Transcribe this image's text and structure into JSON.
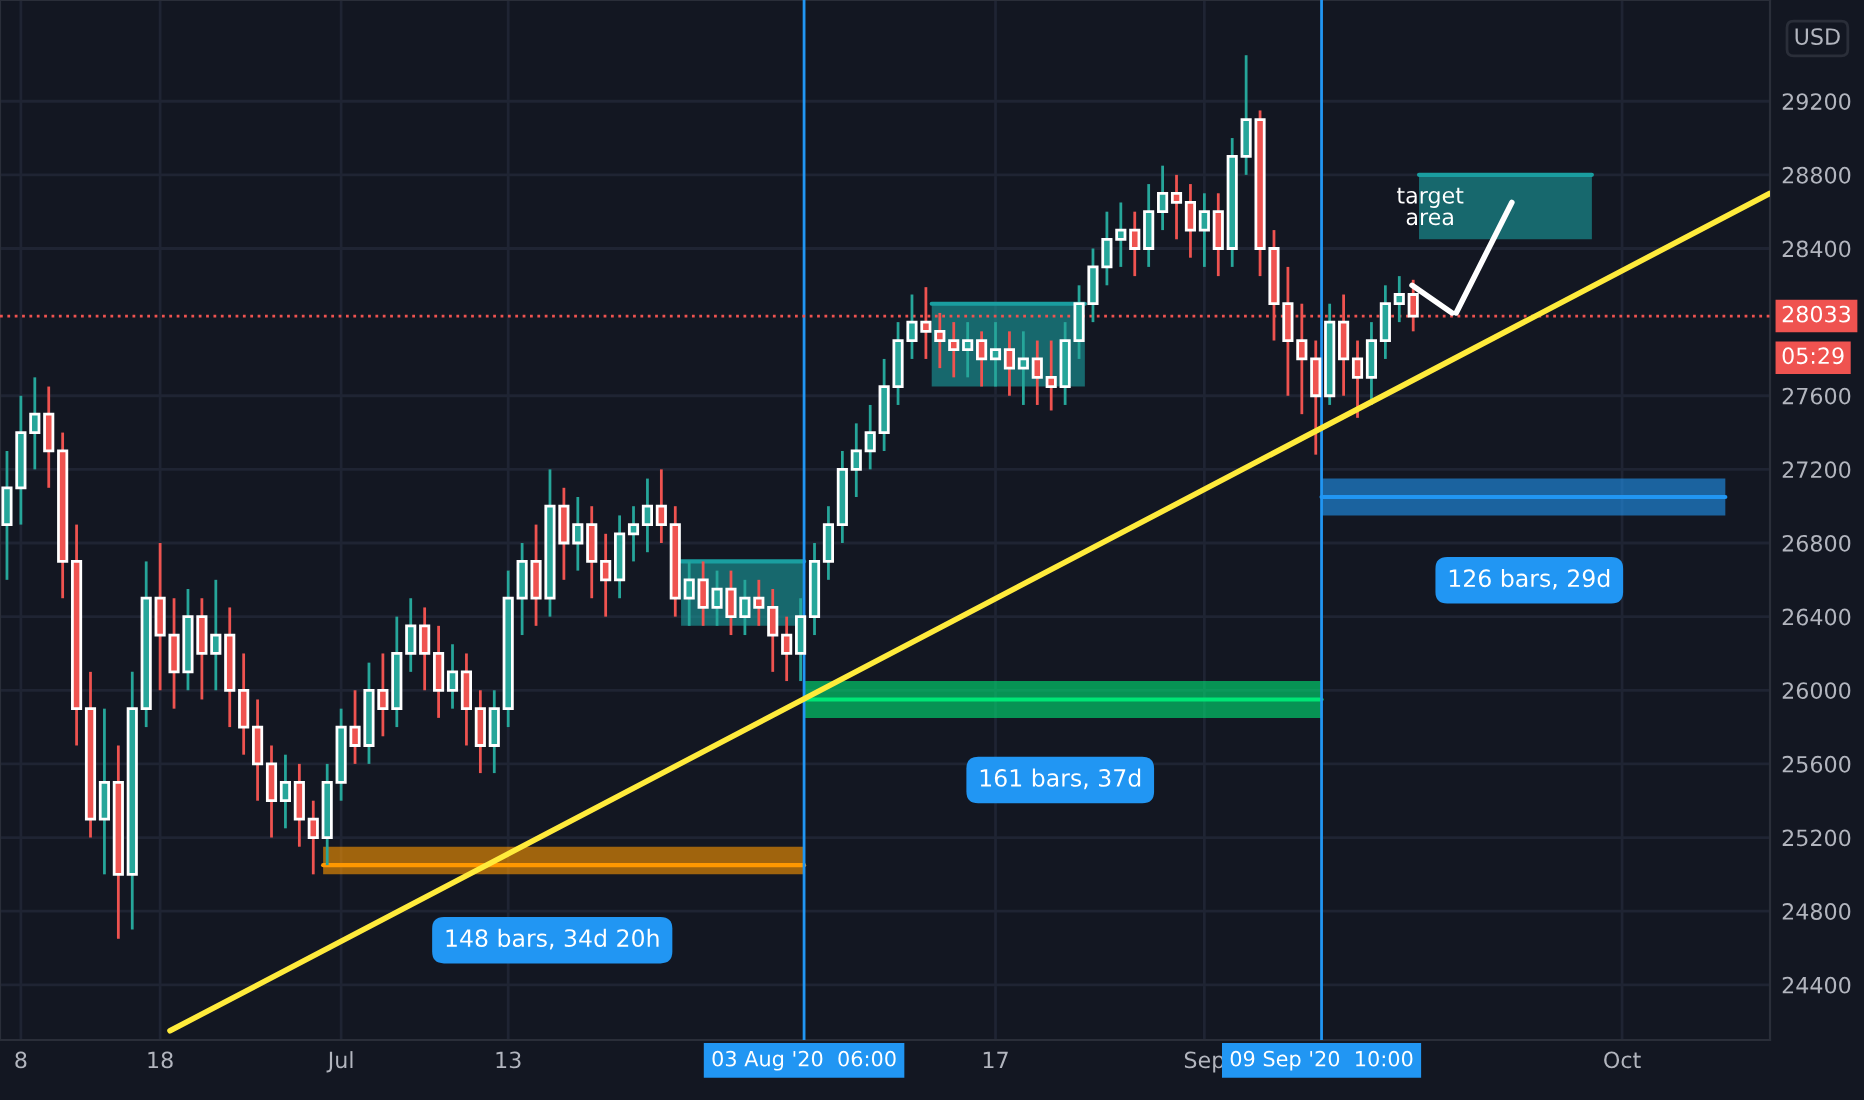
{
  "chart_data": {
    "type": "candlestick",
    "x": [
      "2020-06-07",
      "2020-06-08",
      "2020-06-09",
      "2020-06-10",
      "2020-06-11",
      "2020-06-12",
      "2020-06-13",
      "2020-06-14",
      "2020-06-15",
      "2020-06-16",
      "2020-06-17",
      "2020-06-18",
      "2020-06-19",
      "2020-06-20",
      "2020-06-21",
      "2020-06-22",
      "2020-06-23",
      "2020-06-24",
      "2020-06-25",
      "2020-06-26",
      "2020-06-27",
      "2020-06-28",
      "2020-06-29",
      "2020-06-30",
      "2020-07-01",
      "2020-07-02",
      "2020-07-03",
      "2020-07-04",
      "2020-07-05",
      "2020-07-06",
      "2020-07-07",
      "2020-07-08",
      "2020-07-09",
      "2020-07-10",
      "2020-07-11",
      "2020-07-12",
      "2020-07-13",
      "2020-07-14",
      "2020-07-15",
      "2020-07-16",
      "2020-07-17",
      "2020-07-18",
      "2020-07-19",
      "2020-07-20",
      "2020-07-21",
      "2020-07-22",
      "2020-07-23",
      "2020-07-24",
      "2020-07-25",
      "2020-07-26",
      "2020-07-27",
      "2020-07-28",
      "2020-07-29",
      "2020-07-30",
      "2020-07-31",
      "2020-08-01",
      "2020-08-02",
      "2020-08-03",
      "2020-08-04",
      "2020-08-05",
      "2020-08-06",
      "2020-08-07",
      "2020-08-08",
      "2020-08-09",
      "2020-08-10",
      "2020-08-11",
      "2020-08-12",
      "2020-08-13",
      "2020-08-14",
      "2020-08-15",
      "2020-08-16",
      "2020-08-17",
      "2020-08-18",
      "2020-08-19",
      "2020-08-20",
      "2020-08-21",
      "2020-08-22",
      "2020-08-23",
      "2020-08-24",
      "2020-08-25",
      "2020-08-26",
      "2020-08-27",
      "2020-08-28",
      "2020-08-29",
      "2020-08-30",
      "2020-08-31",
      "2020-09-01",
      "2020-09-02",
      "2020-09-03",
      "2020-09-04",
      "2020-09-05",
      "2020-09-06",
      "2020-09-07",
      "2020-09-08",
      "2020-09-09",
      "2020-09-10",
      "2020-09-11",
      "2020-09-12",
      "2020-09-13",
      "2020-09-14",
      "2020-09-15",
      "2020-09-16"
    ],
    "ohlc": [
      [
        26900,
        27300,
        26600,
        27100
      ],
      [
        27100,
        27600,
        26900,
        27400
      ],
      [
        27400,
        27700,
        27200,
        27500
      ],
      [
        27500,
        27650,
        27100,
        27300
      ],
      [
        27300,
        27400,
        26500,
        26700
      ],
      [
        26700,
        26900,
        25700,
        25900
      ],
      [
        25900,
        26100,
        25200,
        25300
      ],
      [
        25300,
        25900,
        25000,
        25500
      ],
      [
        25500,
        25700,
        24650,
        25000
      ],
      [
        25000,
        26100,
        24700,
        25900
      ],
      [
        25900,
        26700,
        25800,
        26500
      ],
      [
        26500,
        26800,
        26000,
        26300
      ],
      [
        26300,
        26500,
        25900,
        26100
      ],
      [
        26100,
        26550,
        26000,
        26400
      ],
      [
        26400,
        26500,
        25950,
        26200
      ],
      [
        26200,
        26600,
        26000,
        26300
      ],
      [
        26300,
        26450,
        25800,
        26000
      ],
      [
        26000,
        26200,
        25650,
        25800
      ],
      [
        25800,
        25950,
        25400,
        25600
      ],
      [
        25600,
        25700,
        25200,
        25400
      ],
      [
        25400,
        25650,
        25250,
        25500
      ],
      [
        25500,
        25600,
        25150,
        25300
      ],
      [
        25300,
        25400,
        25000,
        25200
      ],
      [
        25200,
        25600,
        25050,
        25500
      ],
      [
        25500,
        25900,
        25400,
        25800
      ],
      [
        25800,
        26000,
        25600,
        25700
      ],
      [
        25700,
        26150,
        25600,
        26000
      ],
      [
        26000,
        26200,
        25750,
        25900
      ],
      [
        25900,
        26400,
        25800,
        26200
      ],
      [
        26200,
        26500,
        26100,
        26350
      ],
      [
        26350,
        26450,
        26000,
        26200
      ],
      [
        26200,
        26350,
        25850,
        26000
      ],
      [
        26000,
        26250,
        25900,
        26100
      ],
      [
        26100,
        26200,
        25700,
        25900
      ],
      [
        25900,
        26000,
        25550,
        25700
      ],
      [
        25700,
        26000,
        25550,
        25900
      ],
      [
        25900,
        26650,
        25800,
        26500
      ],
      [
        26500,
        26800,
        26300,
        26700
      ],
      [
        26700,
        26900,
        26350,
        26500
      ],
      [
        26500,
        27200,
        26400,
        27000
      ],
      [
        27000,
        27100,
        26600,
        26800
      ],
      [
        26800,
        27050,
        26650,
        26900
      ],
      [
        26900,
        27000,
        26500,
        26700
      ],
      [
        26700,
        26850,
        26400,
        26600
      ],
      [
        26600,
        26950,
        26500,
        26850
      ],
      [
        26850,
        27000,
        26700,
        26900
      ],
      [
        26900,
        27150,
        26750,
        27000
      ],
      [
        27000,
        27200,
        26800,
        26900
      ],
      [
        26900,
        27000,
        26400,
        26500
      ],
      [
        26500,
        26700,
        26350,
        26600
      ],
      [
        26600,
        26700,
        26350,
        26450
      ],
      [
        26450,
        26650,
        26350,
        26550
      ],
      [
        26550,
        26650,
        26300,
        26400
      ],
      [
        26400,
        26600,
        26300,
        26500
      ],
      [
        26500,
        26600,
        26350,
        26450
      ],
      [
        26450,
        26550,
        26100,
        26300
      ],
      [
        26300,
        26400,
        26050,
        26200
      ],
      [
        26200,
        26500,
        26050,
        26400
      ],
      [
        26400,
        26800,
        26300,
        26700
      ],
      [
        26700,
        27000,
        26600,
        26900
      ],
      [
        26900,
        27300,
        26800,
        27200
      ],
      [
        27200,
        27450,
        27050,
        27300
      ],
      [
        27300,
        27550,
        27200,
        27400
      ],
      [
        27400,
        27800,
        27300,
        27650
      ],
      [
        27650,
        28000,
        27550,
        27900
      ],
      [
        27900,
        28150,
        27800,
        28000
      ],
      [
        28000,
        28190,
        27800,
        27950
      ],
      [
        27950,
        28050,
        27750,
        27900
      ],
      [
        27900,
        28000,
        27700,
        27850
      ],
      [
        27850,
        28000,
        27700,
        27900
      ],
      [
        27900,
        27950,
        27650,
        27800
      ],
      [
        27800,
        28000,
        27650,
        27850
      ],
      [
        27850,
        27950,
        27600,
        27750
      ],
      [
        27750,
        27950,
        27550,
        27800
      ],
      [
        27800,
        27900,
        27550,
        27700
      ],
      [
        27700,
        27900,
        27520,
        27650
      ],
      [
        27650,
        28000,
        27550,
        27900
      ],
      [
        27900,
        28200,
        27800,
        28100
      ],
      [
        28100,
        28400,
        28000,
        28300
      ],
      [
        28300,
        28600,
        28200,
        28450
      ],
      [
        28450,
        28650,
        28300,
        28500
      ],
      [
        28500,
        28600,
        28250,
        28400
      ],
      [
        28400,
        28750,
        28300,
        28600
      ],
      [
        28600,
        28850,
        28500,
        28700
      ],
      [
        28700,
        28800,
        28450,
        28650
      ],
      [
        28650,
        28750,
        28350,
        28500
      ],
      [
        28500,
        28700,
        28300,
        28600
      ],
      [
        28600,
        28700,
        28250,
        28400
      ],
      [
        28400,
        29000,
        28300,
        28900
      ],
      [
        28900,
        29450,
        28800,
        29100
      ],
      [
        29100,
        29150,
        28250,
        28400
      ],
      [
        28400,
        28500,
        27900,
        28100
      ],
      [
        28100,
        28300,
        27600,
        27900
      ],
      [
        27900,
        28100,
        27500,
        27800
      ],
      [
        27800,
        27900,
        27280,
        27600
      ],
      [
        27600,
        28100,
        27550,
        28000
      ],
      [
        28000,
        28150,
        27600,
        27800
      ],
      [
        27800,
        27900,
        27480,
        27700
      ],
      [
        27700,
        28000,
        27550,
        27900
      ],
      [
        27900,
        28200,
        27800,
        28100
      ],
      [
        28100,
        28250,
        28000,
        28150
      ],
      [
        28150,
        28230,
        27950,
        28033
      ]
    ],
    "series": [
      {
        "type": "line",
        "color": "#ffeb3b",
        "x": [
          "2020-06-18T17:00",
          "2020-10-11T15:00"
        ],
        "values": [
          24150,
          28700
        ]
      },
      {
        "type": "line",
        "color": "#1a9ea0",
        "x": [
          "2020-07-25T10:00",
          "2020-08-03T06:00"
        ],
        "values": [
          26700,
          26700
        ],
        "lower": [
          26350,
          26350
        ],
        "upper": [
          26700,
          26700
        ]
      },
      {
        "type": "line",
        "color": "#1a9ea0",
        "x": [
          "2020-08-12T10:00",
          "2020-08-23T10:00"
        ],
        "values": [
          28100,
          28100
        ],
        "lower": [
          27650,
          27650
        ],
        "upper": [
          28100,
          28100
        ]
      },
      {
        "type": "line",
        "color": "#1a9ea0",
        "x": [
          "2020-09-16T10:00",
          "2020-09-28T20:00"
        ],
        "values": [
          28800,
          28800
        ],
        "lower": [
          28450,
          28450
        ],
        "upper": [
          28800,
          28800
        ]
      },
      {
        "type": "line",
        "color": "#ff9800",
        "x": [
          "2020-06-29T17:00",
          "2020-08-03T06:00"
        ],
        "values": [
          25050,
          25050
        ],
        "lower": [
          25000,
          25000
        ],
        "upper": [
          25150,
          25150
        ]
      },
      {
        "type": "line",
        "color": "#00e676",
        "x": [
          "2020-08-03T06:00",
          "2020-09-09T10:00"
        ],
        "values": [
          25950,
          25950
        ],
        "lower": [
          25850,
          25850
        ],
        "upper": [
          26050,
          26050
        ]
      },
      {
        "type": "line",
        "color": "#2196f3",
        "x": [
          "2020-09-09T10:00",
          "2020-10-08T10:00"
        ],
        "values": [
          27050,
          27050
        ],
        "lower": [
          26950,
          26950
        ],
        "upper": [
          27150,
          27150
        ]
      },
      {
        "type": "line",
        "color": "#ffffff",
        "x": [
          "2020-09-15T22:00",
          "2020-09-18T19:00"
        ],
        "values": [
          28200,
          28050
        ]
      },
      {
        "type": "line",
        "color": "#ffffff",
        "x": [
          "2020-09-23T02:00",
          "2020-09-19T02:00"
        ],
        "values": [
          28650,
          28050
        ]
      }
    ],
    "annotations": [
      "USD",
      "target\narea",
      "148 bars, 34d 20h",
      "161 bars, 37d",
      "126 bars, 29d"
    ],
    "ref_lines": [
      {
        "axis": "x",
        "value": "2020-08-03T06:00",
        "label": "03 Aug '20  06:00",
        "color": "#2196f3"
      },
      {
        "axis": "x",
        "value": "2020-09-09T10:00",
        "label": "09 Sep '20  10:00",
        "color": "#2196f3"
      },
      {
        "axis": "y",
        "value": 28033,
        "label": "28033\n05:29",
        "color": "#ef5350",
        "line_style": "dotted"
      }
    ],
    "xlim": [
      "2020-06-06T12:00",
      "2020-10-11T15:00"
    ],
    "xticks": [
      {
        "value": "2020-06-08",
        "label": "8"
      },
      {
        "value": "2020-06-18",
        "label": "18"
      },
      {
        "value": "2020-07-01",
        "label": "Jul"
      },
      {
        "value": "2020-07-13",
        "label": "13"
      },
      {
        "value": "2020-08-17",
        "label": "17"
      },
      {
        "value": "2020-09-01",
        "label": "Sep"
      },
      {
        "value": "2020-10-01",
        "label": "Oct"
      }
    ],
    "ylim": [
      24100,
      29750
    ],
    "yticks": [
      24400,
      24800,
      25200,
      25600,
      26000,
      26400,
      26800,
      27200,
      27600,
      28400,
      28800,
      29200
    ],
    "grid": true,
    "legend": false
  }
}
